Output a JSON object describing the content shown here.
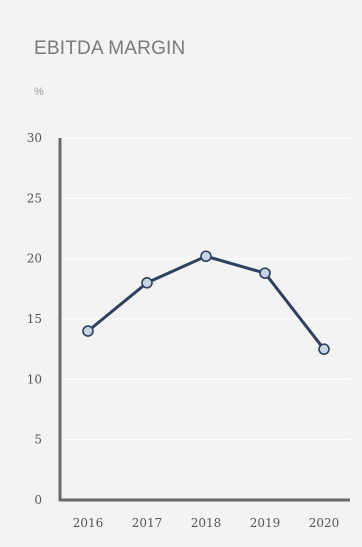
{
  "chart_data": {
    "type": "line",
    "title": "EBITDA MARGIN",
    "unit_label": "%",
    "categories": [
      "2016",
      "2017",
      "2018",
      "2019",
      "2020"
    ],
    "series": [
      {
        "values": [
          14,
          18,
          20.2,
          18.8,
          12.5
        ]
      }
    ],
    "ylim": [
      0,
      30
    ],
    "yticks": [
      "0",
      "5",
      "10",
      "15",
      "20",
      "25",
      "30"
    ],
    "grid": true,
    "line_color": "#2e4160",
    "marker_fill": "#c9d4e3",
    "axis_color": "#6b6b6b",
    "grid_color": "#ffffff"
  }
}
